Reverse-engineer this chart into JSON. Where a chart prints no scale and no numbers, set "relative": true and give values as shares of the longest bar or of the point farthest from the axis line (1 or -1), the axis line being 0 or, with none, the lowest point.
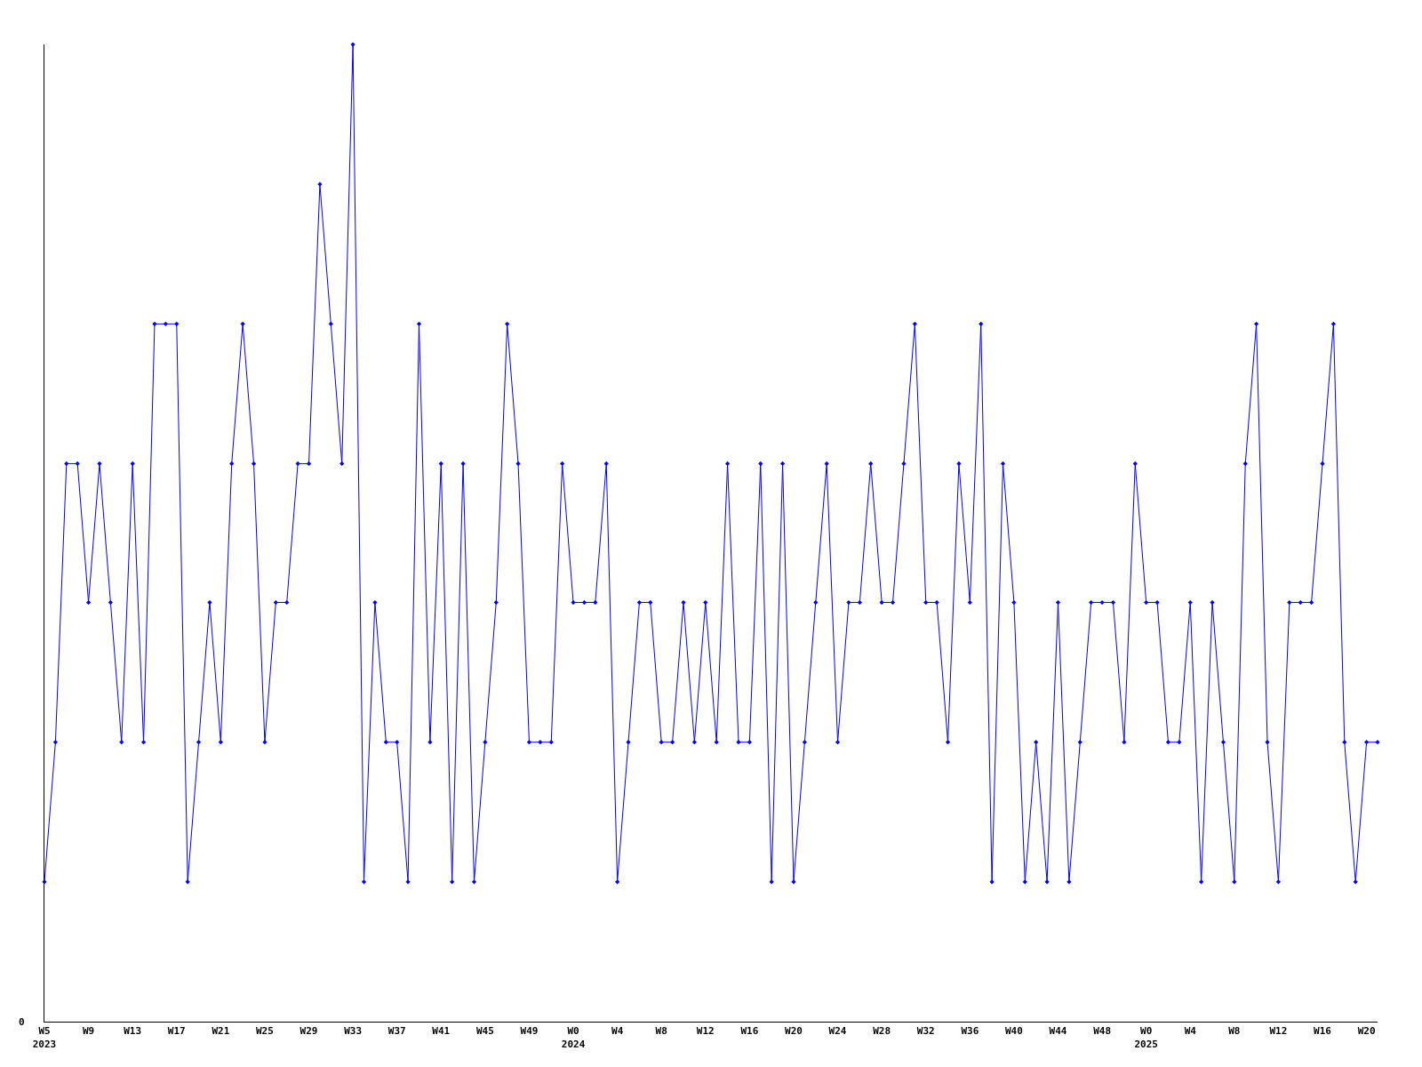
{
  "chart_data": {
    "type": "line",
    "relative": true,
    "categories": [
      "W5\n2023",
      null,
      null,
      null,
      "W9",
      null,
      null,
      null,
      "W13",
      null,
      null,
      null,
      "W17",
      null,
      null,
      null,
      "W21",
      null,
      null,
      null,
      "W25",
      null,
      null,
      null,
      "W29",
      null,
      null,
      null,
      "W33",
      null,
      null,
      null,
      "W37",
      null,
      null,
      null,
      "W41",
      null,
      null,
      null,
      "W45",
      null,
      null,
      null,
      "W49",
      null,
      null,
      null,
      "W0\n2024",
      null,
      null,
      null,
      "W4",
      null,
      null,
      null,
      "W8",
      null,
      null,
      null,
      "W12",
      null,
      null,
      null,
      "W16",
      null,
      null,
      null,
      "W20",
      null,
      null,
      null,
      "W24",
      null,
      null,
      null,
      "W28",
      null,
      null,
      null,
      "W32",
      null,
      null,
      null,
      "W36",
      null,
      null,
      null,
      "W40",
      null,
      null,
      null,
      "W44",
      null,
      null,
      null,
      "W48",
      null,
      null,
      null,
      "W0\n2025",
      null,
      null,
      null,
      "W4",
      null,
      null,
      null,
      "W8",
      null,
      null,
      null,
      "W12",
      null,
      null,
      null,
      "W16",
      null,
      null,
      null,
      "W20",
      null
    ],
    "series": [
      {
        "color": "#0000ff",
        "values": [
          0.143,
          0.286,
          0.571,
          0.571,
          0.429,
          0.571,
          0.429,
          0.286,
          0.571,
          0.286,
          0.714,
          0.714,
          0.714,
          0.143,
          0.286,
          0.429,
          0.286,
          0.571,
          0.714,
          0.571,
          0.286,
          0.429,
          0.429,
          0.571,
          0.571,
          0.857,
          0.714,
          0.571,
          1,
          0.143,
          0.429,
          0.286,
          0.286,
          0.143,
          0.714,
          0.286,
          0.571,
          0.143,
          0.571,
          0.143,
          0.286,
          0.429,
          0.714,
          0.571,
          0.286,
          0.286,
          0.286,
          0.571,
          0.429,
          0.429,
          0.429,
          0.571,
          0.143,
          0.286,
          0.429,
          0.429,
          0.286,
          0.286,
          0.429,
          0.286,
          0.429,
          0.286,
          0.571,
          0.286,
          0.286,
          0.571,
          0.143,
          0.571,
          0.143,
          0.286,
          0.429,
          0.571,
          0.286,
          0.429,
          0.429,
          0.571,
          0.429,
          0.429,
          0.571,
          0.714,
          0.429,
          0.429,
          0.286,
          0.571,
          0.429,
          0.714,
          0.143,
          0.571,
          0.429,
          0.143,
          0.286,
          0.143,
          0.429,
          0.143,
          0.286,
          0.429,
          0.429,
          0.429,
          0.286,
          0.571,
          0.429,
          0.429,
          0.286,
          0.286,
          0.429,
          0.143,
          0.429,
          0.286,
          0.143,
          0.571,
          0.714,
          0.286,
          0.143,
          0.429,
          0.429,
          0.429,
          0.571,
          0.714,
          0.286,
          0.143,
          0.286,
          0.286
        ]
      }
    ],
    "annotations": [
      "0"
    ],
    "marker": "diamond",
    "line_style": "solid"
  }
}
